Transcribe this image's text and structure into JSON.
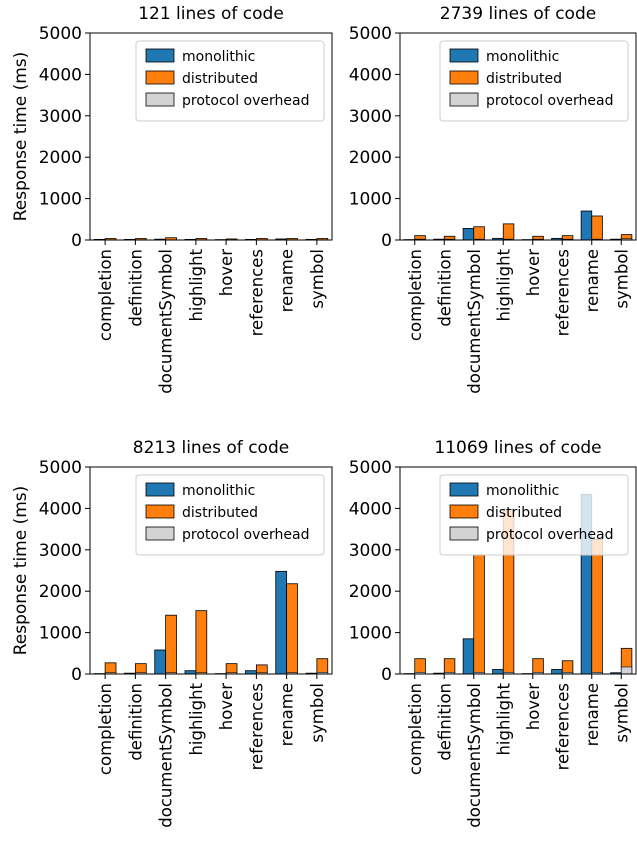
{
  "colors": {
    "monolithic": "#1f77b4",
    "distributed": "#ff7f0e",
    "overhead": "#d3d3d3"
  },
  "chart_data": [
    {
      "type": "bar",
      "title": "121 lines of code",
      "ylabel": "Response time (ms)",
      "ylim": [
        0,
        5000
      ],
      "yticks": [
        0,
        1000,
        2000,
        3000,
        4000,
        5000
      ],
      "categories": [
        "completion",
        "definition",
        "documentSymbol",
        "highlight",
        "hover",
        "references",
        "rename",
        "symbol"
      ],
      "legend": "top-right",
      "series": [
        {
          "name": "monolithic",
          "values": [
            15,
            15,
            20,
            15,
            10,
            15,
            25,
            15
          ]
        },
        {
          "name": "distributed",
          "values": [
            35,
            35,
            55,
            35,
            25,
            35,
            35,
            35
          ]
        },
        {
          "name": "protocol overhead",
          "values": [
            5,
            5,
            5,
            5,
            5,
            5,
            5,
            5
          ]
        }
      ]
    },
    {
      "type": "bar",
      "title": "2739 lines of code",
      "ylabel": "",
      "ylim": [
        0,
        5000
      ],
      "yticks": [
        0,
        1000,
        2000,
        3000,
        4000,
        5000
      ],
      "categories": [
        "completion",
        "definition",
        "documentSymbol",
        "highlight",
        "hover",
        "references",
        "rename",
        "symbol"
      ],
      "legend": "top-right",
      "series": [
        {
          "name": "monolithic",
          "values": [
            10,
            20,
            280,
            40,
            10,
            40,
            700,
            20
          ]
        },
        {
          "name": "distributed",
          "values": [
            105,
            90,
            320,
            390,
            90,
            105,
            580,
            130
          ]
        },
        {
          "name": "protocol overhead",
          "values": [
            20,
            20,
            20,
            20,
            20,
            20,
            20,
            30
          ]
        }
      ]
    },
    {
      "type": "bar",
      "title": "8213 lines of code",
      "ylabel": "Response time (ms)",
      "ylim": [
        0,
        5000
      ],
      "yticks": [
        0,
        1000,
        2000,
        3000,
        4000,
        5000
      ],
      "categories": [
        "completion",
        "definition",
        "documentSymbol",
        "highlight",
        "hover",
        "references",
        "rename",
        "symbol"
      ],
      "legend": "top-right",
      "series": [
        {
          "name": "monolithic",
          "values": [
            10,
            20,
            580,
            80,
            10,
            80,
            2480,
            20
          ]
        },
        {
          "name": "distributed",
          "values": [
            270,
            250,
            1420,
            1530,
            250,
            220,
            2180,
            370
          ]
        },
        {
          "name": "protocol overhead",
          "values": [
            30,
            30,
            30,
            30,
            30,
            30,
            30,
            40
          ]
        }
      ]
    },
    {
      "type": "bar",
      "title": "11069 lines of code",
      "ylabel": "",
      "ylim": [
        0,
        5000
      ],
      "yticks": [
        0,
        1000,
        2000,
        3000,
        4000,
        5000
      ],
      "categories": [
        "completion",
        "definition",
        "documentSymbol",
        "highlight",
        "hover",
        "references",
        "rename",
        "symbol"
      ],
      "legend": "top-right",
      "series": [
        {
          "name": "monolithic",
          "values": [
            10,
            20,
            850,
            110,
            10,
            110,
            4340,
            30
          ]
        },
        {
          "name": "distributed",
          "values": [
            370,
            370,
            2880,
            3980,
            370,
            320,
            3250,
            620
          ]
        },
        {
          "name": "protocol overhead",
          "values": [
            40,
            40,
            40,
            40,
            40,
            40,
            40,
            170
          ]
        }
      ]
    }
  ]
}
